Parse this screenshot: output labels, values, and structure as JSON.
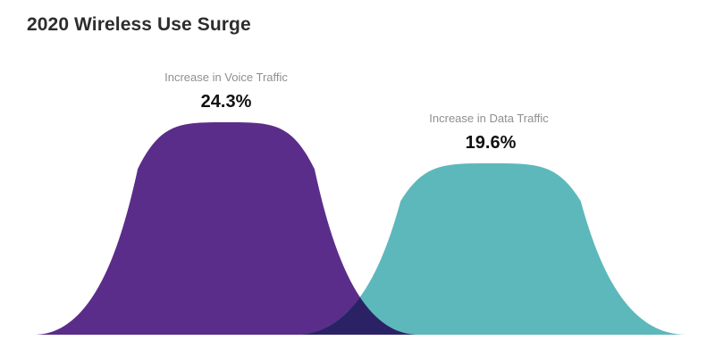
{
  "title": "2020 Wireless Use Surge",
  "chart_data": {
    "type": "area",
    "title": "2020 Wireless Use Surge",
    "series": [
      {
        "name": "Increase in Voice Traffic",
        "value": 24.3,
        "value_label": "24.3%",
        "color": "#5b2d8a"
      },
      {
        "name": "Increase in Data Traffic",
        "value": 19.6,
        "value_label": "19.6%",
        "color": "#5db8bb"
      }
    ],
    "overlap_color": "#2b2266",
    "grid": false
  }
}
